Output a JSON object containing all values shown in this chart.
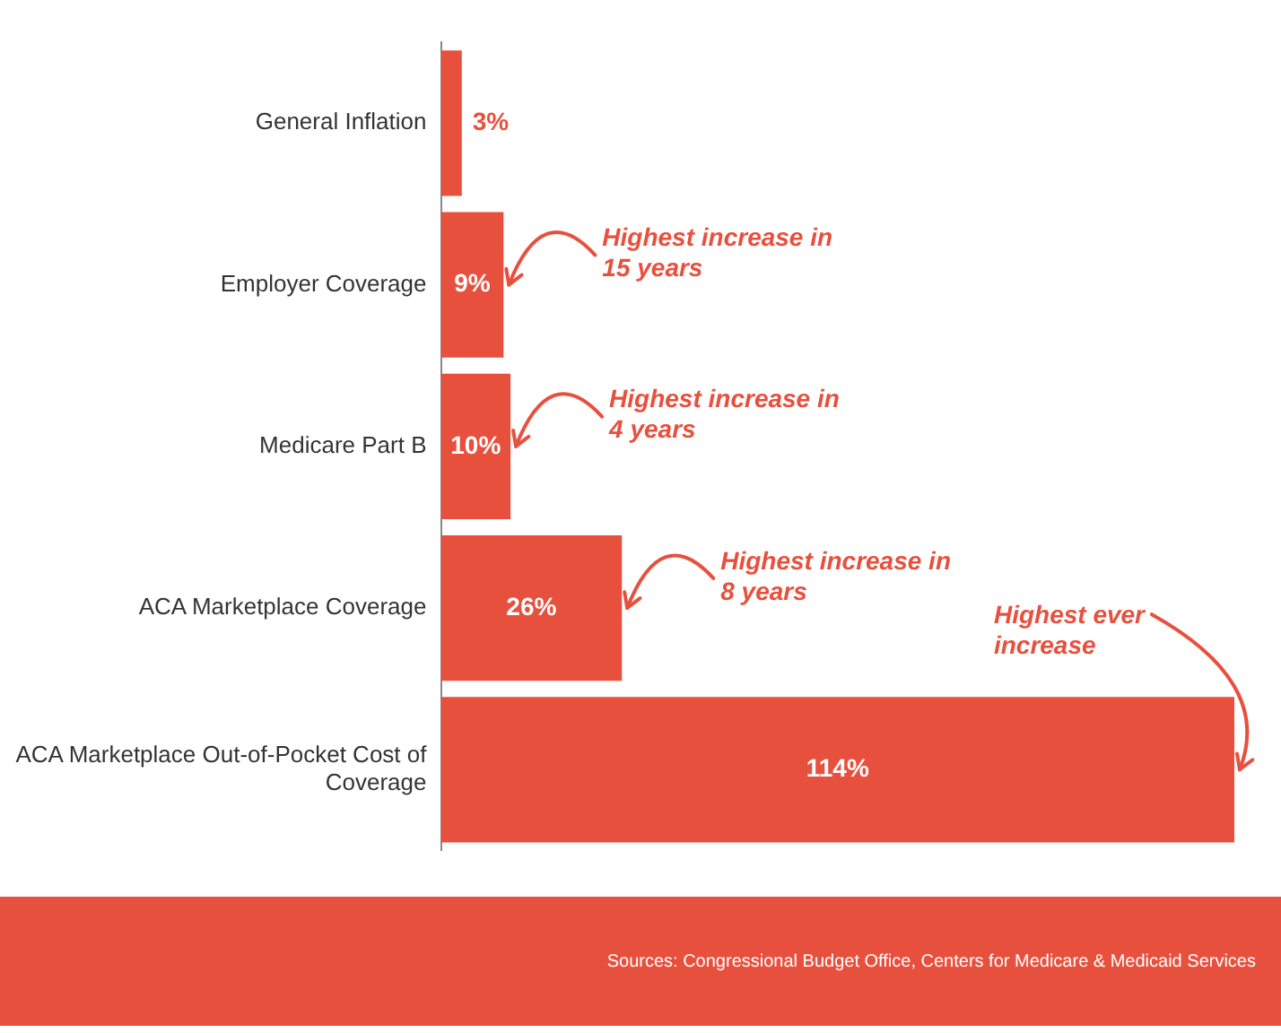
{
  "chart_data": {
    "type": "bar",
    "orientation": "horizontal",
    "categories": [
      "General Inflation",
      "Employer Coverage",
      "Medicare Part B",
      "ACA Marketplace Coverage",
      "ACA Marketplace Out-of-Pocket Cost of Coverage"
    ],
    "values": [
      3,
      9,
      10,
      26,
      114
    ],
    "value_labels": [
      "3%",
      "9%",
      "10%",
      "26%",
      "114%"
    ],
    "color": "#e8503e",
    "xlim": [
      0,
      114
    ],
    "tick_labels": "y",
    "legend": false,
    "annotations": [
      {
        "text": "Highest increase in 15 years",
        "x": 9,
        "y": "Employer Coverage"
      },
      {
        "text": "Highest increase in 4 years",
        "x": 10,
        "y": "Medicare Part B"
      },
      {
        "text": "Highest increase in 8 years",
        "x": 26,
        "y": "ACA Marketplace Coverage"
      },
      {
        "text": "Highest ever increase",
        "x": 114,
        "y": "ACA Marketplace Out-of-Pocket Cost of Coverage"
      },
      "Sources: Congressional Budget Office, Centers for Medicare & Medicaid Services"
    ]
  }
}
